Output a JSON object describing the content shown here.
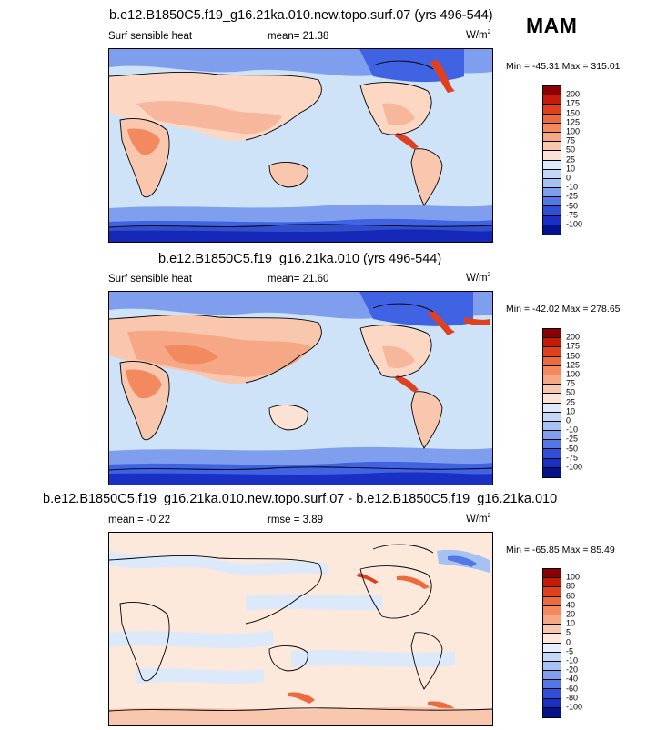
{
  "season": "MAM",
  "colors": {
    "ocean_base": "#cfe3f8",
    "land_warm": "#f6b79c",
    "land_light": "#fbd7c4",
    "cold": "#3f63e2",
    "cold_light": "#8fb0f1",
    "deep_cold": "#1a2fc4",
    "hot": "#e0401e"
  },
  "panels": [
    {
      "id": "top",
      "title": "b.e12.B1850C5.f19_g16.21ka.010.new.topo.surf.07 (yrs 496-544)",
      "left_label": "Surf sensible heat",
      "mean_text": "mean=  21.38",
      "units": "W/m",
      "units_sup": "2",
      "minmax": "Min = -45.31 Max = 315.01",
      "levels": [
        "200",
        "175",
        "150",
        "125",
        "100",
        "75",
        "50",
        "25",
        "10",
        "0",
        "-10",
        "-25",
        "-50",
        "-75",
        "-100"
      ],
      "colors": [
        "#8b0000",
        "#c41a0a",
        "#e0401e",
        "#ee6a3e",
        "#f3895f",
        "#f6a886",
        "#f9c6ae",
        "#fce2d4",
        "#dbe9fa",
        "#c3d8f6",
        "#a6c2f3",
        "#7f9fee",
        "#5577e6",
        "#2f4ed6",
        "#1a2fc4",
        "#06118c"
      ]
    },
    {
      "id": "mid",
      "title": "b.e12.B1850C5.f19_g16.21ka.010 (yrs 496-544)",
      "left_label": "Surf sensible heat",
      "mean_text": "mean=  21.60",
      "units": "W/m",
      "units_sup": "2",
      "minmax": "Min = -42.02 Max = 278.65",
      "levels": [
        "200",
        "175",
        "150",
        "125",
        "100",
        "75",
        "50",
        "25",
        "10",
        "0",
        "-10",
        "-25",
        "-50",
        "-75",
        "-100"
      ],
      "colors": [
        "#8b0000",
        "#c41a0a",
        "#e0401e",
        "#ee6a3e",
        "#f3895f",
        "#f6a886",
        "#f9c6ae",
        "#fce2d4",
        "#dbe9fa",
        "#c3d8f6",
        "#a6c2f3",
        "#7f9fee",
        "#5577e6",
        "#2f4ed6",
        "#1a2fc4",
        "#06118c"
      ]
    },
    {
      "id": "bot",
      "title": "b.e12.B1850C5.f19_g16.21ka.010.new.topo.surf.07 - b.e12.B1850C5.f19_g16.21ka.010",
      "left_label": "mean =  -0.22",
      "mean_text": "rmse =   3.89",
      "units": "W/m",
      "units_sup": "2",
      "minmax": "Min = -65.85 Max =  85.49",
      "levels": [
        "100",
        "80",
        "60",
        "40",
        "20",
        "10",
        "5",
        "0",
        "-5",
        "-10",
        "-20",
        "-40",
        "-60",
        "-80",
        "-100"
      ],
      "colors": [
        "#8b0000",
        "#c41a0a",
        "#e0401e",
        "#ee6a3e",
        "#f3895f",
        "#f6a886",
        "#f9c6ae",
        "#fde8dc",
        "#e6effb",
        "#c3d8f6",
        "#a6c2f3",
        "#7f9fee",
        "#5577e6",
        "#2f4ed6",
        "#1a2fc4",
        "#06118c"
      ]
    }
  ]
}
